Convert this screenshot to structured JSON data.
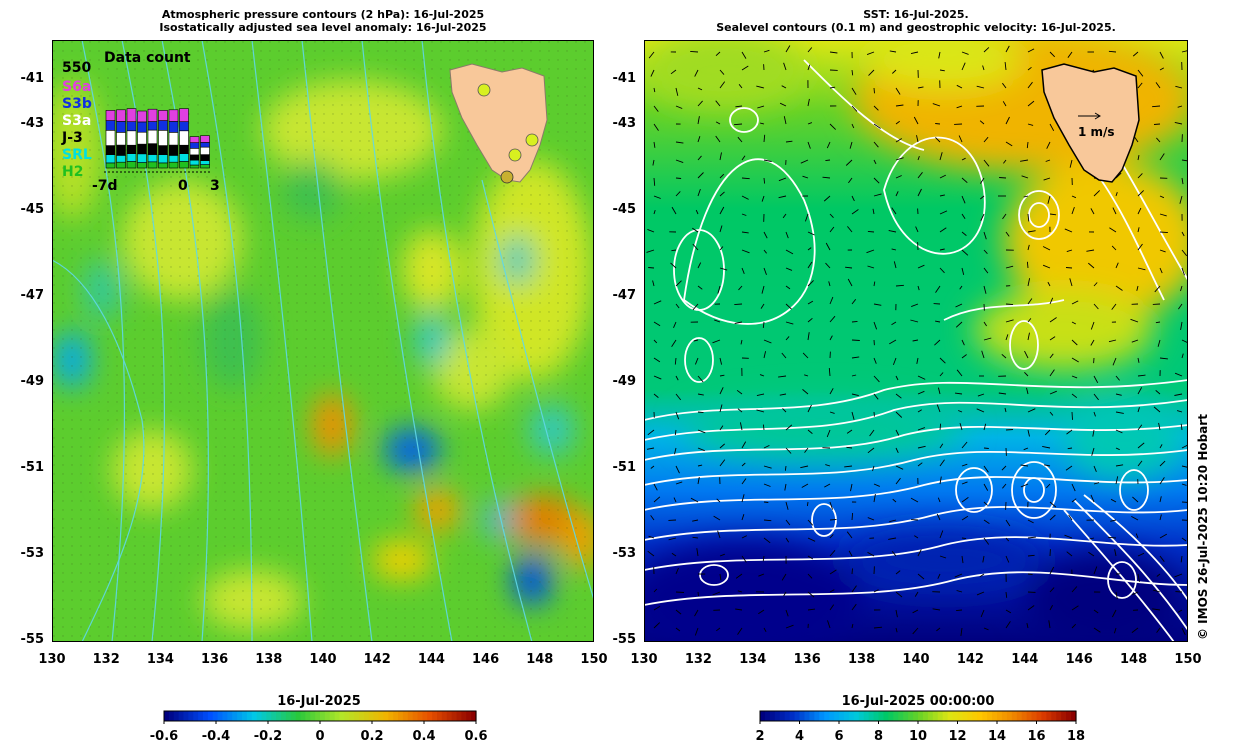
{
  "left_panel": {
    "title_line1": "Atmospheric pressure contours (2 hPa): 16-Jul-2025",
    "title_line2": "Isostatically adjusted sea level anomaly: 16-Jul-2025",
    "inset": {
      "title": "Data count",
      "max_label": "550",
      "missions": [
        "S6a",
        "S3b",
        "S3a",
        "J-3",
        "SRL",
        "H2"
      ],
      "mission_colors": [
        "#e040e0",
        "#1030e0",
        "#ffffff",
        "#000000",
        "#00e0e0",
        "#20c020"
      ],
      "x_labels": [
        "-7d",
        "0",
        "3"
      ]
    },
    "colorbar": {
      "title": "16-Jul-2025",
      "ticks": [
        "-0.6",
        "-0.4",
        "-0.2",
        "0",
        "0.2",
        "0.4",
        "0.6"
      ]
    }
  },
  "right_panel": {
    "title_line1": "SST: 16-Jul-2025.",
    "title_line2": "Sealevel contours (0.1 m) and geostrophic velocity: 16-Jul-2025.",
    "velocity_scale_label": "1 m/s",
    "colorbar": {
      "title": "16-Jul-2025 00:00:00",
      "ticks": [
        "2",
        "4",
        "6",
        "8",
        "10",
        "12",
        "14",
        "16",
        "18"
      ]
    }
  },
  "axes": {
    "lat_ticks": [
      "-41",
      "-43",
      "-45",
      "-47",
      "-49",
      "-51",
      "-53",
      "-55"
    ],
    "lon_ticks": [
      "130",
      "132",
      "134",
      "136",
      "138",
      "140",
      "142",
      "144",
      "146",
      "148",
      "150"
    ]
  },
  "credit": "© IMOS 26-Jul-2025 10:20 Hobart",
  "colors": {
    "land": "#f8c89a",
    "ssl_ramp": [
      "#00007f",
      "#0050ff",
      "#00c8e6",
      "#28c83c",
      "#b4e628",
      "#f0b400",
      "#e65000",
      "#8c0000"
    ],
    "sst_ramp": [
      "#00007f",
      "#0030c8",
      "#0096ff",
      "#00c8dc",
      "#00c864",
      "#64d228",
      "#dce614",
      "#ffc800",
      "#f08c00",
      "#dc3c00",
      "#8c0000"
    ]
  }
}
